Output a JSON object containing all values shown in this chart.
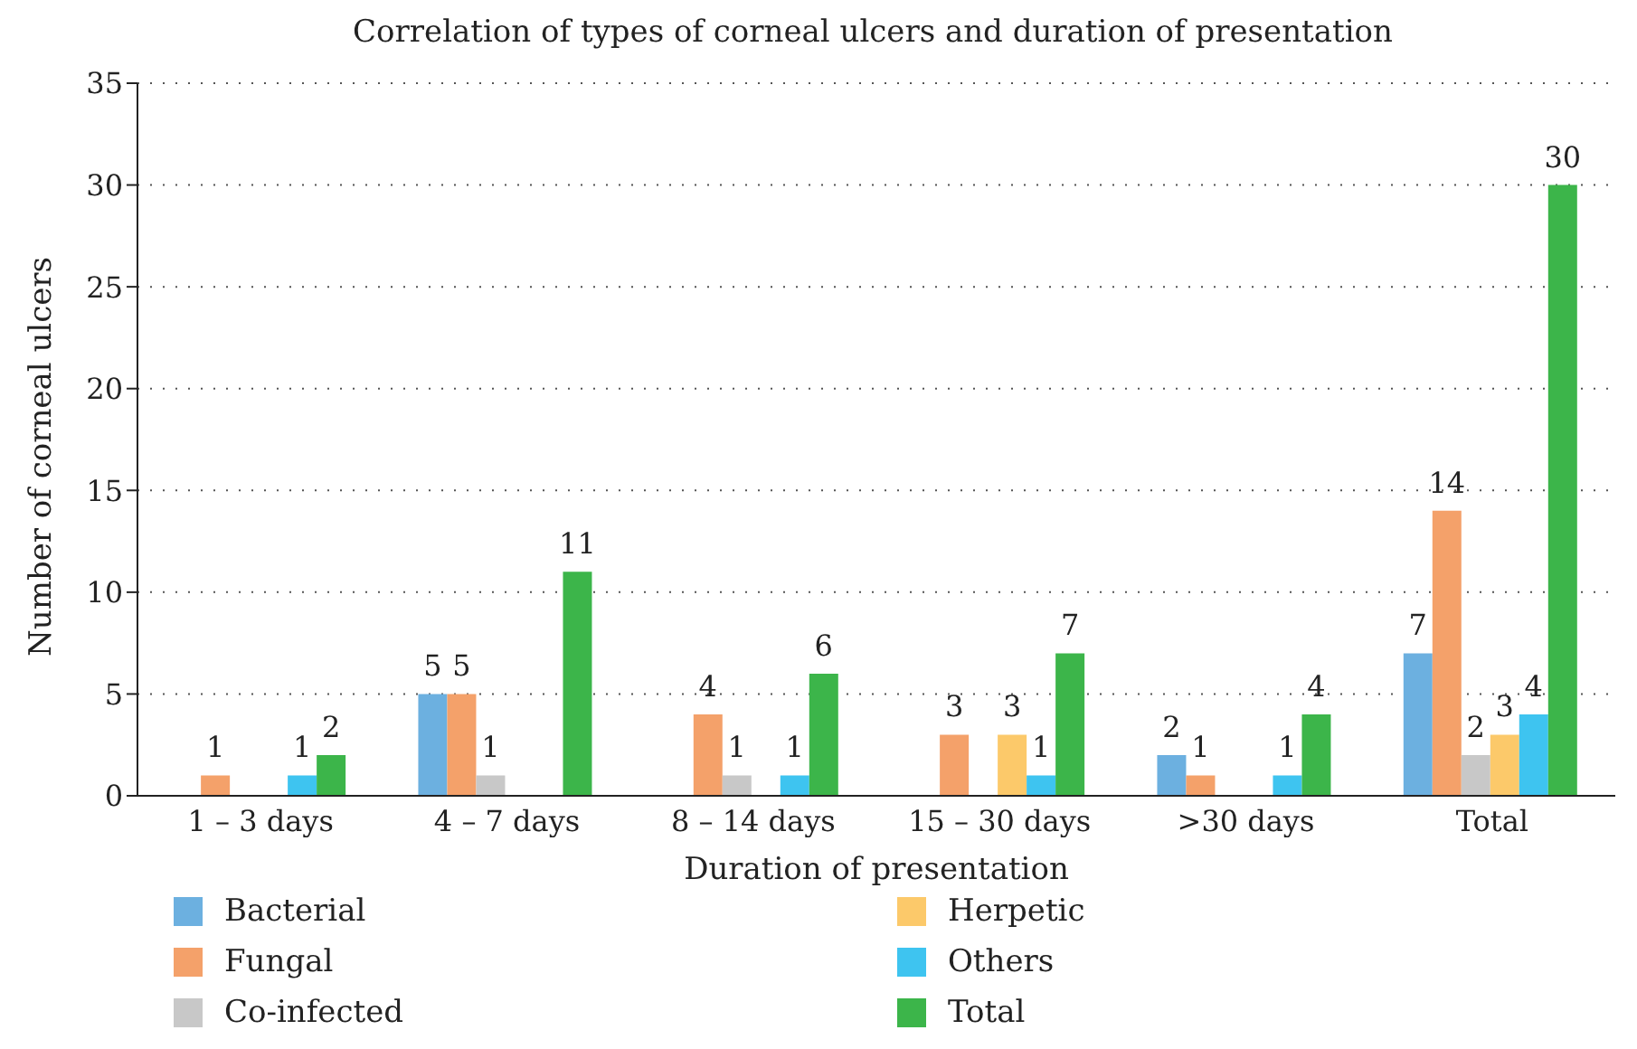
{
  "chart_data": {
    "type": "bar",
    "title": "Correlation of types of corneal ulcers and duration of presentation",
    "xlabel": "Duration of presentation",
    "ylabel": "Number of corneal ulcers",
    "categories": [
      "1 – 3 days",
      "4 – 7 days",
      "8 – 14 days",
      "15 – 30 days",
      ">30 days",
      "Total"
    ],
    "series": [
      {
        "name": "Bacterial",
        "color": "#6cb0e0",
        "values": [
          0,
          5,
          0,
          0,
          2,
          7
        ],
        "value_labels": [
          null,
          "5",
          null,
          null,
          "2",
          "7"
        ]
      },
      {
        "name": "Fungal",
        "color": "#f4a16a",
        "values": [
          1,
          5,
          4,
          3,
          1,
          14
        ],
        "value_labels": [
          "1",
          "5",
          "4",
          "3",
          "1",
          "14"
        ]
      },
      {
        "name": "Co-infected",
        "color": "#c8c8c8",
        "values": [
          0,
          1,
          1,
          0,
          0,
          2
        ],
        "value_labels": [
          null,
          "1",
          "1",
          null,
          null,
          "2"
        ]
      },
      {
        "name": "Herpetic",
        "color": "#fcc96a",
        "values": [
          0,
          0,
          0,
          3,
          0,
          3
        ],
        "value_labels": [
          null,
          null,
          null,
          "3",
          null,
          "3"
        ]
      },
      {
        "name": "Others",
        "color": "#3ec4f0",
        "values": [
          1,
          0,
          1,
          1,
          1,
          4
        ],
        "value_labels": [
          "1",
          null,
          "1",
          "1",
          "1",
          "4"
        ]
      },
      {
        "name": "Total",
        "color": "#3cb54a",
        "values": [
          2,
          11,
          6,
          7,
          4,
          30
        ],
        "value_labels": [
          "2",
          "11",
          "6",
          "7",
          "4",
          "30"
        ]
      }
    ],
    "ylim": [
      0,
      35
    ],
    "yticks": [
      0,
      5,
      10,
      15,
      20,
      25,
      30,
      35
    ],
    "grid": "y",
    "legend": "bottom"
  }
}
